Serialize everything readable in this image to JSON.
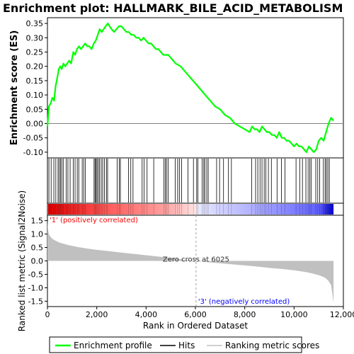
{
  "chart_data": {
    "type": "line",
    "title": "Enrichment plot: HALLMARK_BILE_ACID_METABOLISM",
    "es_panel": {
      "ylabel": "Enrichment score (ES)",
      "ylim": [
        -0.12,
        0.37
      ],
      "yticks": [
        "0.35",
        "0.30",
        "0.25",
        "0.20",
        "0.15",
        "0.10",
        "0.05",
        "0.00",
        "-0.05",
        "-0.10"
      ],
      "ytick_values": [
        0.35,
        0.3,
        0.25,
        0.2,
        0.15,
        0.1,
        0.05,
        0.0,
        -0.05,
        -0.1
      ],
      "series": [
        {
          "name": "Enrichment profile",
          "color": "#00ff00",
          "x": [
            0,
            60,
            130,
            200,
            270,
            330,
            400,
            460,
            520,
            580,
            650,
            720,
            800,
            880,
            960,
            1050,
            1120,
            1200,
            1280,
            1360,
            1450,
            1530,
            1620,
            1700,
            1790,
            1880,
            1960,
            2040,
            2120,
            2200,
            2280,
            2360,
            2450,
            2520,
            2600,
            2700,
            2800,
            2900,
            3000,
            3100,
            3200,
            3300,
            3400,
            3500,
            3600,
            3700,
            3800,
            3900,
            4000,
            4100,
            4200,
            4300,
            4400,
            4500,
            4600,
            4700,
            4800,
            4900,
            5000,
            5200,
            5400,
            5600,
            5800,
            6000,
            6200,
            6400,
            6600,
            6800,
            7000,
            7200,
            7400,
            7600,
            7800,
            8000,
            8200,
            8300,
            8400,
            8500,
            8600,
            8700,
            8800,
            8900,
            9000,
            9100,
            9200,
            9300,
            9400,
            9500,
            9600,
            9700,
            9800,
            9900,
            10000,
            10100,
            10200,
            10300,
            10400,
            10500,
            10600,
            10700,
            10800,
            10900,
            11000,
            11100,
            11200,
            11300,
            11400,
            11500,
            11600
          ],
          "y": [
            -0.01,
            0.06,
            0.07,
            0.09,
            0.08,
            0.13,
            0.16,
            0.19,
            0.2,
            0.19,
            0.21,
            0.2,
            0.21,
            0.22,
            0.21,
            0.25,
            0.24,
            0.26,
            0.27,
            0.26,
            0.27,
            0.28,
            0.27,
            0.27,
            0.26,
            0.28,
            0.29,
            0.31,
            0.33,
            0.32,
            0.33,
            0.34,
            0.35,
            0.34,
            0.33,
            0.32,
            0.33,
            0.34,
            0.34,
            0.33,
            0.32,
            0.32,
            0.31,
            0.31,
            0.3,
            0.3,
            0.29,
            0.3,
            0.29,
            0.28,
            0.28,
            0.27,
            0.26,
            0.26,
            0.25,
            0.24,
            0.24,
            0.24,
            0.23,
            0.21,
            0.2,
            0.18,
            0.16,
            0.14,
            0.12,
            0.1,
            0.08,
            0.06,
            0.05,
            0.03,
            0.02,
            0.0,
            -0.01,
            -0.02,
            -0.03,
            -0.01,
            -0.02,
            -0.02,
            -0.03,
            -0.01,
            -0.02,
            -0.03,
            -0.03,
            -0.04,
            -0.04,
            -0.05,
            -0.03,
            -0.05,
            -0.05,
            -0.06,
            -0.06,
            -0.07,
            -0.08,
            -0.07,
            -0.08,
            -0.08,
            -0.09,
            -0.1,
            -0.08,
            -0.09,
            -0.1,
            -0.09,
            -0.06,
            -0.05,
            -0.06,
            -0.03,
            0.0,
            0.02,
            0.01
          ]
        }
      ]
    },
    "hits": {
      "name": "Hits",
      "color": "#000000",
      "positions": [
        60,
        150,
        260,
        340,
        430,
        480,
        530,
        580,
        640,
        760,
        830,
        920,
        1050,
        1120,
        1210,
        1270,
        1410,
        1470,
        1540,
        1890,
        1930,
        1970,
        2010,
        2060,
        2110,
        2180,
        2240,
        2310,
        2390,
        2440,
        2830,
        2910,
        2960,
        3290,
        3380,
        3470,
        3840,
        3920,
        4040,
        4310,
        4720,
        4780,
        4830,
        4900,
        5180,
        5280,
        5350,
        5440,
        5700,
        5920,
        6050,
        6100,
        6270,
        6340,
        6380,
        6460,
        6520,
        6860,
        6980,
        7140,
        7340,
        7460,
        8280,
        8440,
        8530,
        8620,
        8700,
        8790,
        8860,
        8960,
        9080,
        9310,
        9490,
        9630,
        10080,
        10230,
        10340,
        10480,
        10570,
        10640,
        10690,
        10880,
        10960,
        11040,
        11190,
        11260,
        11310,
        11370,
        11430
      ]
    },
    "ranked_metric": {
      "name": "Ranking metric scores",
      "color": "#c0c0c0",
      "ylabel": "Ranked list metric (Signal2Noise)",
      "ylim": [
        -1.7,
        1.7
      ],
      "yticks": [
        "1.5",
        "1.0",
        "0.5",
        "0.0",
        "-0.5",
        "-1.0",
        "-1.5"
      ],
      "ytick_values": [
        1.5,
        1.0,
        0.5,
        0.0,
        -0.5,
        -1.0,
        -1.5
      ],
      "x": [
        0,
        20,
        60,
        120,
        200,
        350,
        500,
        800,
        1200,
        1600,
        2000,
        2500,
        3000,
        3500,
        4000,
        4500,
        5000,
        5500,
        6025,
        6500,
        7000,
        7500,
        8000,
        8500,
        9000,
        9500,
        10000,
        10500,
        10800,
        11000,
        11200,
        11300,
        11400,
        11500,
        11550,
        11600
      ],
      "y": [
        1.5,
        1.2,
        1.0,
        0.9,
        0.82,
        0.74,
        0.68,
        0.6,
        0.52,
        0.46,
        0.41,
        0.36,
        0.31,
        0.26,
        0.21,
        0.16,
        0.11,
        0.05,
        0.0,
        -0.05,
        -0.09,
        -0.13,
        -0.17,
        -0.21,
        -0.26,
        -0.3,
        -0.35,
        -0.42,
        -0.48,
        -0.53,
        -0.6,
        -0.66,
        -0.75,
        -0.9,
        -1.2,
        -1.55
      ],
      "zero_cross_label": "Zero cross at 6025",
      "zero_cross_rank": 6025,
      "positive_label": "'1' (positively correlated)",
      "negative_label": "'3' (negatively correlated)",
      "positive_color": "#ff0000",
      "negative_color": "#0000ff"
    },
    "xaxis": {
      "label": "Rank in Ordered Dataset",
      "xlim": [
        0,
        12000
      ],
      "ticks": [
        "0",
        "2,000",
        "4,000",
        "6,000",
        "8,000",
        "10,000",
        "12,000"
      ],
      "tick_values": [
        0,
        2000,
        4000,
        6000,
        8000,
        10000,
        12000
      ],
      "dataset_size": 11600
    },
    "color_bar": {
      "pos_end": 4750,
      "neutral_end": 6025,
      "neg_start": 8150,
      "dark_blue_start": 11000
    },
    "legend": {
      "items": [
        "Enrichment profile",
        "Hits",
        "Ranking metric scores"
      ],
      "placement": "bottom"
    },
    "grid": false
  }
}
